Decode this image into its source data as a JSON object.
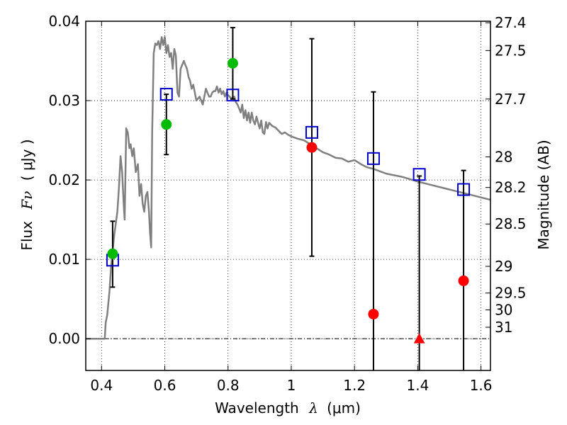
{
  "chart_data": {
    "type": "scatter",
    "xlabel": "Wavelength",
    "xlabel_symbol": "λ",
    "xlabel_unit": "(μm)",
    "ylabel": "Flux",
    "ylabel_symbol": "Fν",
    "ylabel_unit": "( μJy )",
    "y2label": "Magnitude (AB)",
    "xlim": [
      0.35,
      1.63
    ],
    "ylim": [
      -0.004,
      0.04
    ],
    "grid": true,
    "x_ticks": [
      "0.4",
      "0.6",
      "0.8",
      "1",
      "1.2",
      "1.4",
      "1.6"
    ],
    "y_ticks": [
      "0.00",
      "0.01",
      "0.02",
      "0.03",
      "0.04"
    ],
    "mag_ticks": [
      "27.4",
      "27.5",
      "27.7",
      "28",
      "28.2",
      "28.5",
      "29",
      "29.5",
      "30",
      "31"
    ],
    "sed_template": {
      "color": "#808080",
      "x": [
        0.35,
        0.41,
        0.413,
        0.418,
        0.425,
        0.43,
        0.44,
        0.45,
        0.455,
        0.46,
        0.465,
        0.47,
        0.473,
        0.478,
        0.483,
        0.488,
        0.492,
        0.497,
        0.502,
        0.508,
        0.515,
        0.52,
        0.525,
        0.53,
        0.535,
        0.54,
        0.545,
        0.55,
        0.553,
        0.557,
        0.56,
        0.565,
        0.57,
        0.575,
        0.58,
        0.585,
        0.59,
        0.595,
        0.6,
        0.605,
        0.61,
        0.615,
        0.62,
        0.625,
        0.63,
        0.635,
        0.64,
        0.645,
        0.65,
        0.655,
        0.66,
        0.665,
        0.67,
        0.675,
        0.68,
        0.685,
        0.69,
        0.7,
        0.71,
        0.72,
        0.73,
        0.735,
        0.74,
        0.745,
        0.75,
        0.755,
        0.76,
        0.765,
        0.77,
        0.775,
        0.78,
        0.785,
        0.79,
        0.795,
        0.8,
        0.81,
        0.82,
        0.825,
        0.83,
        0.835,
        0.84,
        0.845,
        0.85,
        0.855,
        0.86,
        0.865,
        0.87,
        0.875,
        0.88,
        0.885,
        0.89,
        0.895,
        0.9,
        0.905,
        0.91,
        0.915,
        0.92,
        0.925,
        0.93,
        0.94,
        0.95,
        0.96,
        0.97,
        0.98,
        0.99,
        1.0,
        1.02,
        1.04,
        1.06,
        1.08,
        1.1,
        1.12,
        1.14,
        1.16,
        1.18,
        1.2,
        1.22,
        1.24,
        1.26,
        1.3,
        1.35,
        1.4,
        1.45,
        1.5,
        1.55,
        1.6,
        1.63
      ],
      "y": [
        0.0,
        0.0,
        0.002,
        0.003,
        0.006,
        0.009,
        0.013,
        0.016,
        0.019,
        0.023,
        0.021,
        0.017,
        0.015,
        0.0265,
        0.026,
        0.024,
        0.0245,
        0.023,
        0.024,
        0.021,
        0.022,
        0.018,
        0.0195,
        0.017,
        0.016,
        0.018,
        0.0185,
        0.016,
        0.0135,
        0.0115,
        0.026,
        0.036,
        0.0372,
        0.037,
        0.0375,
        0.0365,
        0.038,
        0.037,
        0.038,
        0.036,
        0.037,
        0.0355,
        0.036,
        0.034,
        0.0365,
        0.0357,
        0.031,
        0.0305,
        0.034,
        0.0345,
        0.035,
        0.0345,
        0.034,
        0.033,
        0.0325,
        0.0315,
        0.032,
        0.03,
        0.0305,
        0.0295,
        0.0315,
        0.031,
        0.0305,
        0.0305,
        0.031,
        0.0312,
        0.0312,
        0.0318,
        0.031,
        0.0315,
        0.0308,
        0.0312,
        0.0305,
        0.031,
        0.0307,
        0.0303,
        0.0305,
        0.0298,
        0.0295,
        0.029,
        0.0285,
        0.0295,
        0.0278,
        0.0288,
        0.0275,
        0.0285,
        0.0272,
        0.0285,
        0.0275,
        0.027,
        0.028,
        0.0272,
        0.0265,
        0.0275,
        0.026,
        0.0258,
        0.0273,
        0.0265,
        0.0272,
        0.0268,
        0.0266,
        0.0262,
        0.0258,
        0.026,
        0.0257,
        0.0255,
        0.0252,
        0.025,
        0.0245,
        0.024,
        0.0235,
        0.0232,
        0.0228,
        0.0227,
        0.0223,
        0.0225,
        0.022,
        0.0216,
        0.0214,
        0.0208,
        0.0204,
        0.0198,
        0.0193,
        0.0188,
        0.0183,
        0.0178,
        0.0175
      ]
    },
    "model_squares": {
      "color": "#0000cc",
      "x": [
        0.435,
        0.605,
        0.815,
        1.065,
        1.26,
        1.405,
        1.545
      ],
      "y": [
        0.0099,
        0.0308,
        0.0307,
        0.026,
        0.0227,
        0.0207,
        0.0188
      ]
    },
    "detections": {
      "color": "#00bb00",
      "x": [
        0.435,
        0.605,
        0.815
      ],
      "y": [
        0.0107,
        0.027,
        0.0347
      ],
      "yerr_low": [
        0.0065,
        0.0232,
        0.0302
      ],
      "yerr_high": [
        0.0148,
        0.0308,
        0.0392
      ]
    },
    "non_detections": {
      "color": "#ff0000",
      "x": [
        1.065,
        1.26,
        1.545
      ],
      "y": [
        0.0241,
        0.0031,
        0.0073
      ],
      "yerr_low": [
        0.0104,
        -0.0045,
        -0.0045
      ],
      "yerr_high": [
        0.0378,
        0.0311,
        0.0212
      ]
    },
    "upper_limit_triangle": {
      "color": "#ff0000",
      "x": 1.405,
      "y": 0.0,
      "yerr_low": -0.0045,
      "yerr_high": 0.0205
    },
    "zero_line": true
  }
}
